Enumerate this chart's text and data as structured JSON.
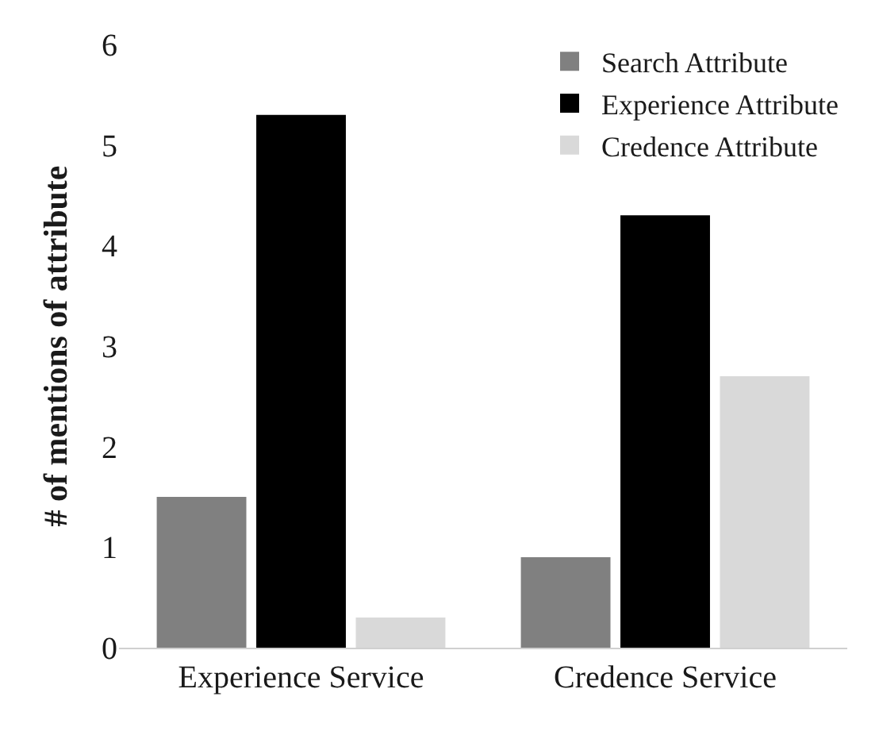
{
  "chart_data": {
    "type": "bar",
    "ylabel": "# of mentions of attribute",
    "categories": [
      "Experience Service",
      "Credence Service"
    ],
    "series": [
      {
        "name": "Search Attribute",
        "color": "#808080",
        "values": [
          1.5,
          0.9
        ]
      },
      {
        "name": "Experience Attribute",
        "color": "#000000",
        "values": [
          5.3,
          4.3
        ]
      },
      {
        "name": "Credence Attribute",
        "color": "#d9d9d9",
        "values": [
          0.3,
          2.7
        ]
      }
    ],
    "ylim": [
      0,
      6
    ],
    "yticks": [
      0,
      1,
      2,
      3,
      4,
      5,
      6
    ],
    "legend": "top right"
  }
}
